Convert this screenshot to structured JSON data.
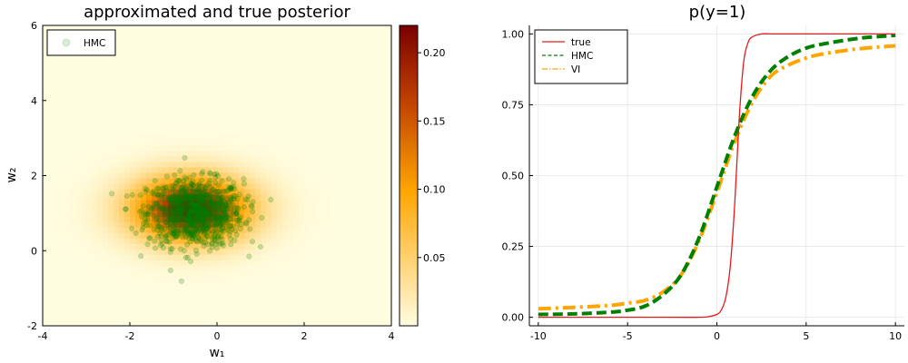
{
  "chart_data": [
    {
      "type": "heatmap",
      "title": "approximated and true posterior",
      "xlabel": "w₁",
      "ylabel": "w₂",
      "xlim": [
        -4,
        4
      ],
      "ylim": [
        -2,
        6
      ],
      "xticks": [
        "-4",
        "-2",
        "0",
        "2",
        "4"
      ],
      "yticks": [
        "-2",
        "0",
        "2",
        "4",
        "6"
      ],
      "heatmap": {
        "description_center": [
          -0.6,
          1.1
        ],
        "sigma": [
          0.95,
          0.62
        ],
        "peak": 0.22,
        "colorbar_range": [
          0,
          0.22
        ],
        "colorbar_ticks": [
          "0.05",
          "0.10",
          "0.15",
          "0.20"
        ],
        "colormap": [
          "#fffde0",
          "#ffa500",
          "#7a0000"
        ]
      },
      "scatter": {
        "name": "HMC",
        "color": "#008000",
        "center": [
          -0.5,
          1.0
        ],
        "spread": [
          0.55,
          0.45
        ],
        "n_points": 900
      },
      "legend": {
        "position": "top-left",
        "entries": [
          "HMC"
        ]
      },
      "grid": false
    },
    {
      "type": "line",
      "title": "p(y=1)",
      "xlim": [
        -10.5,
        10.5
      ],
      "ylim": [
        -0.03,
        1.03
      ],
      "xticks": [
        "-10",
        "-5",
        "0",
        "5",
        "10"
      ],
      "yticks": [
        "0.00",
        "0.25",
        "0.50",
        "0.75",
        "1.00"
      ],
      "xtick_values": [
        -10,
        -5,
        0,
        5,
        10
      ],
      "ytick_values": [
        0,
        0.25,
        0.5,
        0.75,
        1.0
      ],
      "grid": true,
      "legend": {
        "position": "top-left",
        "entries": [
          "true",
          "HMC",
          "VI"
        ]
      },
      "series": [
        {
          "name": "true",
          "color": "#e8191c",
          "style": "solid",
          "x": [
            -10,
            -3,
            -1,
            -0.5,
            0,
            0.25,
            0.5,
            0.75,
            1,
            1.25,
            1.5,
            1.75,
            2,
            2.5,
            3,
            5,
            10
          ],
          "y": [
            0.0,
            0.0,
            0.0,
            0.002,
            0.01,
            0.026,
            0.07,
            0.18,
            0.4,
            0.7,
            0.9,
            0.97,
            0.99,
            1.0,
            1.0,
            1.0,
            1.0
          ]
        },
        {
          "name": "HMC",
          "color": "#008000",
          "style": "dash",
          "x": [
            -10,
            -8,
            -6,
            -5,
            -4,
            -3,
            -2,
            -1,
            0,
            1,
            2,
            3,
            4,
            5,
            6,
            8,
            10
          ],
          "y": [
            0.01,
            0.012,
            0.018,
            0.025,
            0.04,
            0.08,
            0.15,
            0.28,
            0.46,
            0.64,
            0.78,
            0.87,
            0.92,
            0.95,
            0.965,
            0.985,
            0.995
          ]
        },
        {
          "name": "VI",
          "color": "#ffa500",
          "style": "dashdot",
          "x": [
            -10,
            -8,
            -6,
            -5,
            -4,
            -3,
            -2,
            -1,
            0,
            1,
            2,
            3,
            4,
            5,
            6,
            8,
            10
          ],
          "y": [
            0.03,
            0.035,
            0.042,
            0.05,
            0.06,
            0.09,
            0.15,
            0.27,
            0.44,
            0.62,
            0.76,
            0.85,
            0.89,
            0.915,
            0.93,
            0.948,
            0.958
          ]
        }
      ]
    }
  ]
}
